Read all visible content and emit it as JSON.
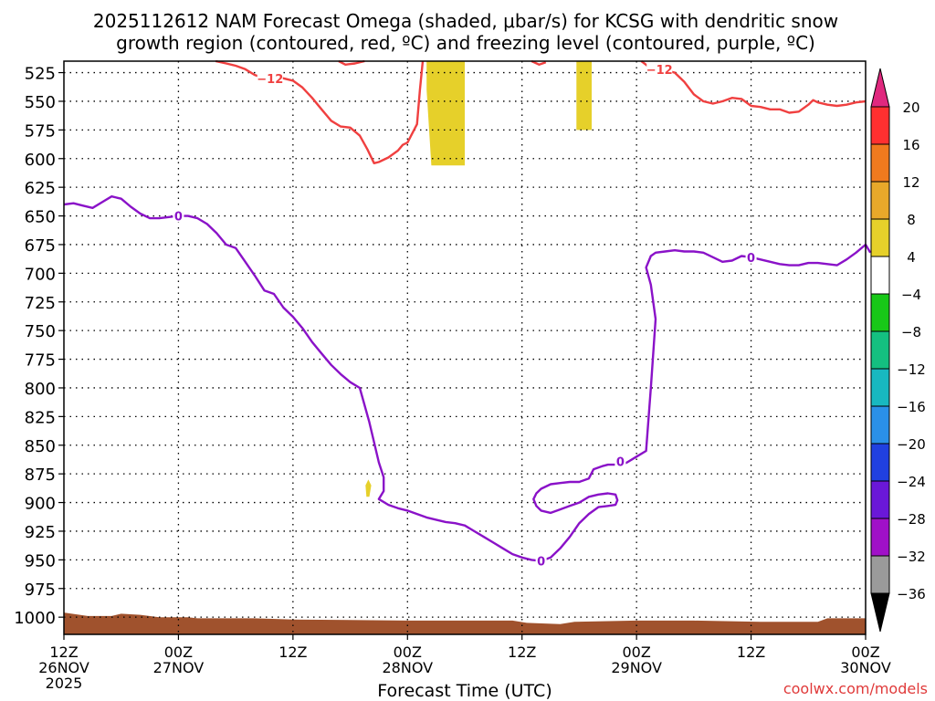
{
  "chart_data": {
    "type": "heatmap",
    "title_line1": "2025112612 NAM Forecast Omega (shaded, μbar/s) for KCSG with dendritic snow",
    "title_line2": "growth region (contoured, red, ºC) and freezing level (contoured, purple, ºC)",
    "xlabel": "Forecast Time (UTC)",
    "credit": "coolwx.com/models",
    "x_range_hours": [
      0,
      84
    ],
    "y_range_mb": [
      1015,
      515
    ],
    "y_ticks": [
      "525",
      "550",
      "575",
      "600",
      "625",
      "650",
      "675",
      "700",
      "725",
      "750",
      "775",
      "800",
      "825",
      "850",
      "875",
      "900",
      "925",
      "950",
      "975",
      "1000"
    ],
    "y_tick_values": [
      525,
      550,
      575,
      600,
      625,
      650,
      675,
      700,
      725,
      750,
      775,
      800,
      825,
      850,
      875,
      900,
      925,
      950,
      975,
      1000
    ],
    "x_ticks": [
      {
        "h": 0,
        "hour": "12Z",
        "date": "26NOV",
        "year": "2025"
      },
      {
        "h": 12,
        "hour": "00Z",
        "date": "27NOV",
        "year": ""
      },
      {
        "h": 24,
        "hour": "12Z",
        "date": "",
        "year": ""
      },
      {
        "h": 36,
        "hour": "00Z",
        "date": "28NOV",
        "year": ""
      },
      {
        "h": 48,
        "hour": "12Z",
        "date": "",
        "year": ""
      },
      {
        "h": 60,
        "hour": "00Z",
        "date": "29NOV",
        "year": ""
      },
      {
        "h": 72,
        "hour": "12Z",
        "date": "",
        "year": ""
      },
      {
        "h": 84,
        "hour": "00Z",
        "date": "30NOV",
        "year": ""
      }
    ],
    "colorbar": {
      "labels": [
        "20",
        "16",
        "12",
        "8",
        "4",
        "−4",
        "−8",
        "−12",
        "−16",
        "−20",
        "−24",
        "−28",
        "−32",
        "−36"
      ],
      "levels": [
        20,
        16,
        12,
        8,
        4,
        -4,
        -8,
        -12,
        -16,
        -20,
        -24,
        -28,
        -32,
        -36
      ],
      "colors": [
        "#ff3030",
        "#f07a1e",
        "#e8a82a",
        "#e6d02a",
        "#ffffff",
        "#18c818",
        "#14c080",
        "#18b8c0",
        "#2a90e8",
        "#2040e0",
        "#6a18d8",
        "#a010c8",
        "#9a9a9a"
      ],
      "top_arrow_color": "#e0287e",
      "bottom_arrow_color": "#000000"
    },
    "series": [
      {
        "name": "-12C dendritic growth contour",
        "label": "−12",
        "color": "#f04040",
        "segments": [
          [
            [
              15.9,
              515
            ],
            [
              17.0,
              517
            ],
            [
              18.0,
              519
            ],
            [
              19.0,
              522
            ],
            [
              20.0,
              527
            ],
            [
              21.0,
              530
            ],
            [
              22.0,
              528
            ],
            [
              23.0,
              530
            ],
            [
              24.0,
              532
            ],
            [
              25.0,
              538
            ],
            [
              26.0,
              547
            ],
            [
              27.0,
              557
            ],
            [
              28.0,
              567
            ],
            [
              29.0,
              572
            ],
            [
              30.0,
              573
            ],
            [
              31.0,
              580
            ],
            [
              31.8,
              592
            ],
            [
              32.5,
              604
            ],
            [
              33.0,
              603
            ],
            [
              34.0,
              599
            ],
            [
              35.0,
              593
            ],
            [
              35.5,
              588
            ],
            [
              36.0,
              586
            ],
            [
              37.0,
              570
            ],
            [
              37.3,
              540
            ],
            [
              37.6,
              515
            ]
          ],
          [
            [
              28.8,
              515
            ],
            [
              29.5,
              518
            ],
            [
              30.5,
              517
            ],
            [
              31.5,
              515
            ]
          ],
          [
            [
              49.0,
              515
            ],
            [
              49.8,
              518
            ],
            [
              50.5,
              516
            ]
          ],
          [
            [
              60.5,
              515
            ],
            [
              61.3,
              520
            ],
            [
              62.0,
              522
            ],
            [
              63.0,
              523
            ],
            [
              64.0,
              525
            ],
            [
              65.0,
              533
            ],
            [
              66.0,
              544
            ],
            [
              67.0,
              550
            ],
            [
              68.0,
              552
            ],
            [
              69.0,
              550
            ],
            [
              70.0,
              547
            ],
            [
              71.0,
              548
            ],
            [
              72.0,
              554
            ],
            [
              73.0,
              555
            ],
            [
              74.0,
              557
            ],
            [
              75.0,
              557
            ],
            [
              76.0,
              560
            ],
            [
              77.0,
              559
            ],
            [
              78.0,
              553
            ],
            [
              78.5,
              549
            ],
            [
              79.0,
              551
            ],
            [
              80.0,
              553
            ],
            [
              81.0,
              554
            ],
            [
              82.0,
              553
            ],
            [
              83.0,
              551
            ],
            [
              84.0,
              550
            ]
          ]
        ],
        "labels_at": [
          [
            21.6,
            530,
            "−12"
          ],
          [
            62.4,
            522,
            "−12"
          ]
        ]
      },
      {
        "name": "0C freezing level contour",
        "label": "0",
        "color": "#8a12c8",
        "segments": [
          [
            [
              0.0,
              640
            ],
            [
              1.0,
              639
            ],
            [
              2.0,
              641
            ],
            [
              3.0,
              643
            ],
            [
              4.0,
              638
            ],
            [
              5.0,
              633
            ],
            [
              6.0,
              635
            ],
            [
              7.0,
              642
            ],
            [
              8.0,
              648
            ],
            [
              9.0,
              652
            ],
            [
              10.0,
              652
            ],
            [
              11.0,
              651
            ],
            [
              12.0,
              650
            ],
            [
              13.0,
              650
            ],
            [
              14.0,
              652
            ],
            [
              15.0,
              657
            ],
            [
              16.0,
              665
            ],
            [
              17.0,
              675
            ],
            [
              18.0,
              678
            ],
            [
              19.0,
              690
            ],
            [
              20.0,
              702
            ],
            [
              21.0,
              715
            ],
            [
              22.0,
              718
            ],
            [
              23.0,
              730
            ],
            [
              24.0,
              738
            ],
            [
              25.0,
              748
            ],
            [
              26.0,
              760
            ],
            [
              27.0,
              770
            ],
            [
              28.0,
              780
            ],
            [
              29.0,
              788
            ],
            [
              30.0,
              795
            ],
            [
              31.0,
              800
            ],
            [
              32.0,
              830
            ],
            [
              33.0,
              865
            ],
            [
              33.5,
              878
            ],
            [
              33.5,
              890
            ],
            [
              33.0,
              897
            ],
            [
              34.0,
              902
            ],
            [
              35.0,
              905
            ],
            [
              36.0,
              907
            ],
            [
              37.0,
              910
            ],
            [
              38.0,
              913
            ],
            [
              39.0,
              915
            ],
            [
              40.0,
              917
            ],
            [
              41.0,
              918
            ],
            [
              42.0,
              920
            ],
            [
              43.0,
              925
            ],
            [
              44.0,
              930
            ],
            [
              45.0,
              935
            ],
            [
              46.0,
              940
            ],
            [
              47.0,
              945
            ],
            [
              48.0,
              948
            ],
            [
              49.0,
              950
            ],
            [
              50.0,
              951
            ],
            [
              51.0,
              948
            ],
            [
              52.0,
              940
            ],
            [
              53.0,
              930
            ],
            [
              54.0,
              918
            ],
            [
              55.0,
              910
            ],
            [
              56.0,
              904
            ],
            [
              57.0,
              903
            ],
            [
              57.8,
              902
            ],
            [
              58.0,
              898
            ],
            [
              57.8,
              893
            ],
            [
              57.0,
              892
            ],
            [
              56.0,
              893
            ],
            [
              55.0,
              895
            ],
            [
              54.0,
              900
            ],
            [
              53.0,
              903
            ],
            [
              52.0,
              906
            ],
            [
              51.0,
              909
            ],
            [
              50.0,
              907
            ],
            [
              49.5,
              903
            ],
            [
              49.2,
              897
            ],
            [
              49.5,
              892
            ],
            [
              50.0,
              888
            ],
            [
              51.0,
              884
            ],
            [
              52.0,
              883
            ],
            [
              53.0,
              882
            ],
            [
              54.0,
              882
            ],
            [
              55.0,
              879
            ],
            [
              55.5,
              871
            ],
            [
              56.5,
              868
            ],
            [
              57.0,
              867
            ],
            [
              58.5,
              867
            ],
            [
              59.0,
              865
            ],
            [
              60.0,
              860
            ],
            [
              61.0,
              855
            ],
            [
              61.5,
              800
            ],
            [
              62.0,
              740
            ],
            [
              61.5,
              710
            ],
            [
              61.0,
              695
            ],
            [
              61.5,
              685
            ],
            [
              62.0,
              682
            ],
            [
              63.0,
              681
            ],
            [
              64.0,
              680
            ],
            [
              65.0,
              681
            ],
            [
              66.0,
              681
            ],
            [
              67.0,
              682
            ],
            [
              68.0,
              686
            ],
            [
              69.0,
              690
            ],
            [
              70.0,
              689
            ],
            [
              71.0,
              685
            ],
            [
              72.0,
              686
            ],
            [
              73.0,
              688
            ],
            [
              74.0,
              690
            ],
            [
              75.0,
              692
            ],
            [
              76.0,
              693
            ],
            [
              77.0,
              693
            ],
            [
              78.0,
              691
            ],
            [
              79.0,
              691
            ],
            [
              80.0,
              692
            ],
            [
              81.0,
              693
            ],
            [
              82.0,
              688
            ],
            [
              83.0,
              682
            ],
            [
              84.0,
              675
            ],
            [
              84.5,
              682
            ]
          ]
        ],
        "labels_at": [
          [
            12.0,
            650,
            "0"
          ],
          [
            50.0,
            951,
            "0"
          ],
          [
            58.3,
            864,
            "0"
          ],
          [
            72.0,
            686,
            "0"
          ]
        ]
      }
    ],
    "shaded_regions": [
      {
        "name": "omega 4-8 column A",
        "level_color": "#e6d02a",
        "polygon": [
          [
            38.0,
            515
          ],
          [
            42.0,
            515
          ],
          [
            42.0,
            540
          ],
          [
            42.0,
            606
          ],
          [
            38.5,
            606
          ],
          [
            38.0,
            540
          ]
        ]
      },
      {
        "name": "omega 4-8 column B",
        "level_color": "#e6d02a",
        "polygon": [
          [
            53.7,
            515
          ],
          [
            55.3,
            515
          ],
          [
            55.3,
            575
          ],
          [
            53.7,
            575
          ]
        ]
      },
      {
        "name": "omega 4-8 blob",
        "level_color": "#e6d02a",
        "polygon": [
          [
            31.6,
            885
          ],
          [
            31.9,
            880
          ],
          [
            32.2,
            885
          ],
          [
            32.0,
            895
          ],
          [
            31.7,
            895
          ]
        ]
      }
    ],
    "terrain": {
      "name": "surface",
      "color": "#a0522d",
      "top_profile": [
        [
          0.0,
          996
        ],
        [
          2.5,
          999
        ],
        [
          5.0,
          999
        ],
        [
          6.0,
          997
        ],
        [
          8.0,
          998
        ],
        [
          10.0,
          1000
        ],
        [
          13.0,
          1000
        ],
        [
          14.0,
          1001
        ],
        [
          20.0,
          1001
        ],
        [
          24.0,
          1002
        ],
        [
          36.0,
          1003
        ],
        [
          47.0,
          1003
        ],
        [
          48.5,
          1005
        ],
        [
          52.0,
          1006
        ],
        [
          53.5,
          1004
        ],
        [
          60.0,
          1003
        ],
        [
          66.0,
          1003
        ],
        [
          73.0,
          1004
        ],
        [
          79.0,
          1004
        ],
        [
          80.0,
          1001
        ],
        [
          84.0,
          1001
        ]
      ]
    }
  }
}
